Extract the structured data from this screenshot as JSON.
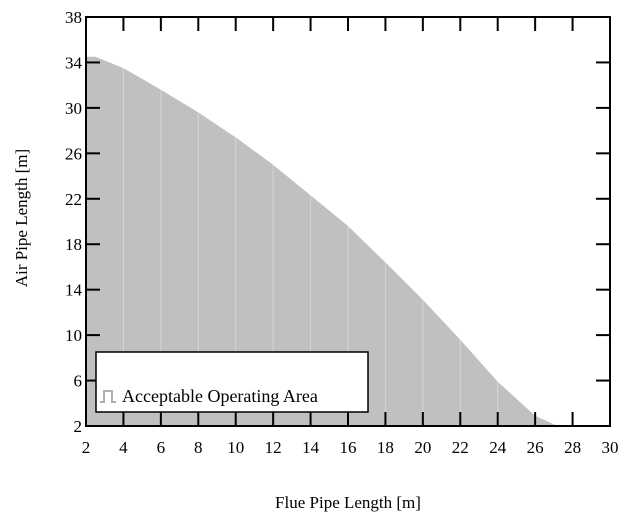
{
  "chart_data": {
    "type": "area",
    "title": "",
    "xlabel": "Flue Pipe Length [m]",
    "ylabel": "Air Pipe Length [m]",
    "xlim": [
      2,
      30
    ],
    "ylim": [
      2,
      38
    ],
    "xticks": [
      "2",
      "4",
      "6",
      "8",
      "10",
      "12",
      "14",
      "16",
      "18",
      "20",
      "22",
      "24",
      "26",
      "28",
      "30"
    ],
    "yticks": [
      "2",
      "6",
      "10",
      "14",
      "18",
      "22",
      "26",
      "30",
      "34",
      "38"
    ],
    "grid": false,
    "legend": {
      "position": "bottom-left",
      "entries": [
        "Acceptable Operating Area"
      ]
    },
    "series": [
      {
        "name": "Acceptable Operating Area",
        "color": "#c0c0c0",
        "x": [
          2,
          2.5,
          4,
          6,
          8,
          10,
          12,
          14,
          16,
          18,
          20,
          22,
          24,
          26,
          27.2
        ],
        "y": [
          34.5,
          34.5,
          33.5,
          31.6,
          29.6,
          27.4,
          25.0,
          22.3,
          19.6,
          16.4,
          13.1,
          9.6,
          5.9,
          2.9,
          2.0
        ]
      }
    ]
  }
}
